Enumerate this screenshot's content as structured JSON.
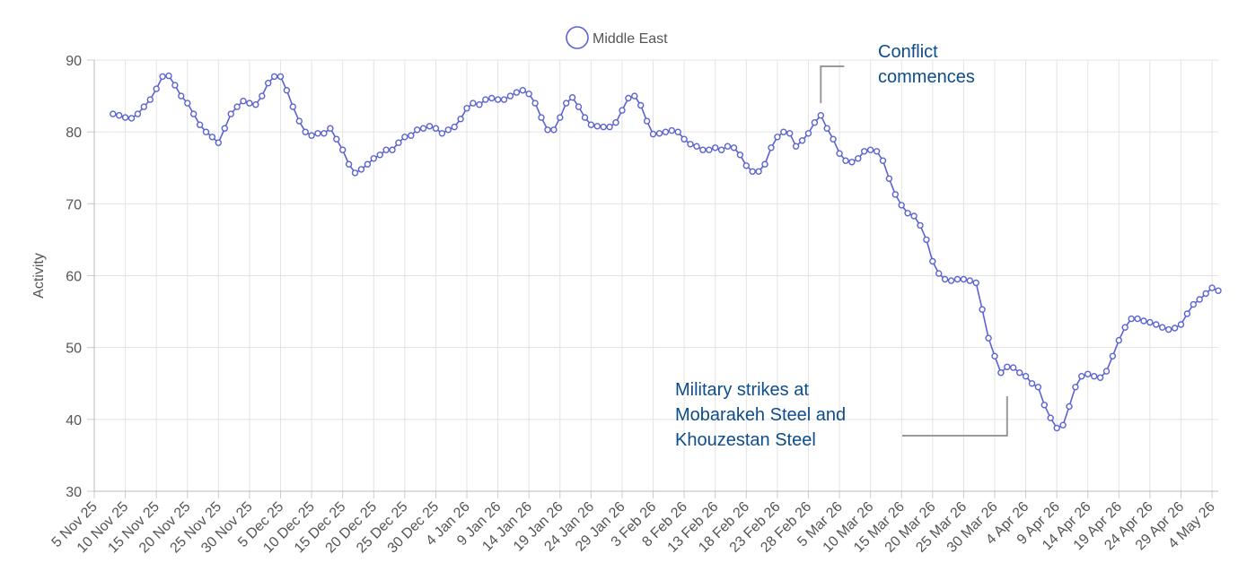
{
  "chart_data": {
    "type": "line",
    "ylabel": "Activity",
    "ylim": [
      30,
      90
    ],
    "yticks": [
      30,
      40,
      50,
      60,
      70,
      80,
      90
    ],
    "xlim": [
      "2025-11-05",
      "2026-05-05"
    ],
    "x_tick_labels": [
      "5 Nov 25",
      "10 Nov 25",
      "15 Nov 25",
      "20 Nov 25",
      "25 Nov 25",
      "30 Nov 25",
      "5 Dec 25",
      "10 Dec 25",
      "15 Dec 25",
      "20 Dec 25",
      "25 Dec 25",
      "30 Dec 25",
      "4 Jan 26",
      "9 Jan 26",
      "14 Jan 26",
      "19 Jan 26",
      "24 Jan 26",
      "29 Jan 26",
      "3 Feb 26",
      "8 Feb 26",
      "13 Feb 26",
      "18 Feb 26",
      "23 Feb 26",
      "28 Feb 26",
      "5 Mar 26",
      "10 Mar 26",
      "15 Mar 26",
      "20 Mar 26",
      "25 Mar 26",
      "30 Mar 26",
      "4 Apr 26",
      "9 Apr 26",
      "14 Apr 26",
      "19 Apr 26",
      "24 Apr 26",
      "29 Apr 26",
      "4 May 26"
    ],
    "grid": true,
    "legend": {
      "position": "top-center",
      "entries": [
        "Middle East"
      ]
    },
    "series": [
      {
        "name": "Middle East",
        "color": "#5b63d3",
        "start_date": "2025-11-08",
        "values": [
          82.5,
          82.3,
          82.0,
          81.9,
          82.5,
          83.5,
          84.5,
          86.0,
          87.7,
          87.8,
          86.5,
          85.0,
          84.0,
          82.5,
          81.0,
          80.0,
          79.3,
          78.5,
          80.5,
          82.5,
          83.5,
          84.3,
          84.0,
          83.8,
          85.0,
          86.8,
          87.7,
          87.7,
          85.8,
          83.5,
          81.5,
          80.0,
          79.5,
          79.8,
          79.8,
          80.5,
          79.0,
          77.5,
          75.5,
          74.3,
          74.8,
          75.5,
          76.3,
          76.8,
          77.5,
          77.5,
          78.5,
          79.3,
          79.5,
          80.3,
          80.5,
          80.8,
          80.5,
          79.8,
          80.3,
          80.7,
          81.8,
          83.3,
          84.0,
          83.8,
          84.5,
          84.7,
          84.5,
          84.5,
          85.0,
          85.5,
          85.8,
          85.3,
          84.0,
          82.0,
          80.3,
          80.3,
          82.0,
          84.0,
          84.8,
          83.5,
          82.0,
          81.0,
          80.8,
          80.7,
          80.7,
          81.3,
          83.0,
          84.7,
          85.0,
          83.7,
          81.5,
          79.7,
          79.8,
          80.0,
          80.2,
          80.0,
          79.0,
          78.3,
          78.0,
          77.5,
          77.5,
          77.8,
          77.5,
          78.0,
          77.8,
          76.8,
          75.3,
          74.5,
          74.5,
          75.5,
          77.8,
          79.3,
          80.0,
          79.8,
          78.0,
          78.8,
          79.8,
          81.3,
          82.3,
          80.5,
          79.0,
          77.0,
          76.0,
          75.8,
          76.3,
          77.3,
          77.5,
          77.3,
          76.0,
          73.5,
          71.3,
          69.8,
          68.7,
          68.3,
          67.0,
          65.0,
          62.0,
          60.3,
          59.5,
          59.3,
          59.5,
          59.5,
          59.3,
          59.0,
          55.3,
          51.3,
          48.8,
          46.5,
          47.3,
          47.2,
          46.5,
          46.0,
          45.0,
          44.5,
          42.0,
          40.2,
          38.8,
          39.2,
          41.8,
          44.5,
          46.0,
          46.3,
          46.0,
          45.8,
          46.7,
          48.8,
          51.0,
          52.8,
          54.0,
          54.0,
          53.7,
          53.5,
          53.2,
          52.8,
          52.5,
          52.7,
          53.2,
          54.7,
          56.0,
          56.7,
          57.5,
          58.3,
          57.9
        ]
      }
    ],
    "annotations": [
      {
        "lines": [
          "Conflict",
          "commences"
        ],
        "date": "2026-03-02",
        "value": 84.0
      },
      {
        "lines": [
          "Military strikes at",
          "Mobarakeh Steel and",
          "Khouzestan Steel"
        ],
        "date": "2026-04-01",
        "value": 43.2
      }
    ]
  }
}
